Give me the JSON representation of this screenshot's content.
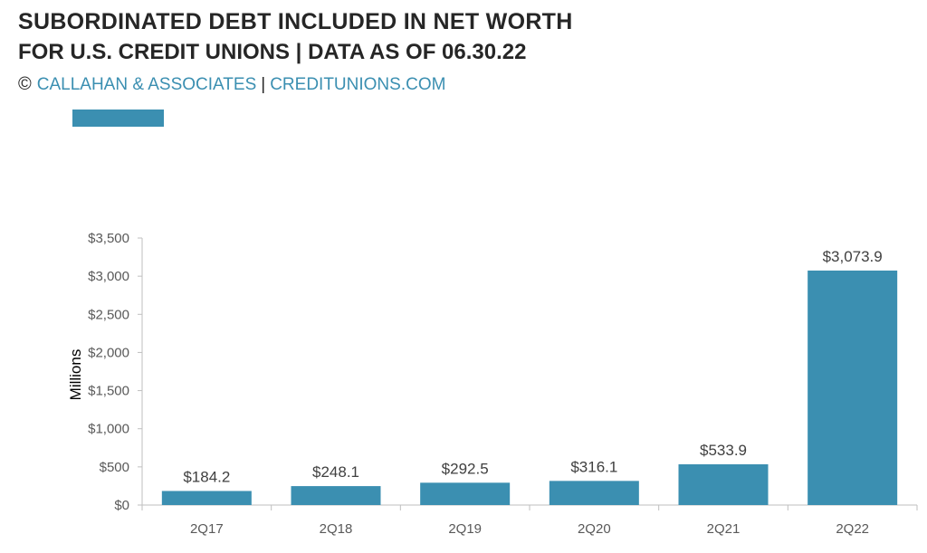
{
  "header": {
    "title": "SUBORDINATED DEBT INCLUDED IN NET WORTH",
    "subtitle": "FOR U.S. CREDIT UNIONS | DATA AS OF 06.30.22",
    "copyright_symbol": "©",
    "credit_org": "CALLAHAN & ASSOCIATES",
    "credit_sep": "|",
    "credit_site": "CREDITUNIONS.COM"
  },
  "colors": {
    "bar": "#3b8fb1",
    "axis": "#bfbfbf",
    "text": "#262626"
  },
  "chart_data": {
    "type": "bar",
    "title": "SUBORDINATED DEBT INCLUDED IN NET WORTH",
    "subtitle": "FOR U.S. CREDIT UNIONS | DATA AS OF 06.30.22",
    "xlabel": "",
    "ylabel": "Millions",
    "categories": [
      "2Q17",
      "2Q18",
      "2Q19",
      "2Q20",
      "2Q21",
      "2Q22"
    ],
    "values": [
      184.2,
      248.1,
      292.5,
      316.1,
      533.9,
      3073.9
    ],
    "data_labels": [
      "$184.2",
      "$248.1",
      "$292.5",
      "$316.1",
      "$533.9",
      "$3,073.9"
    ],
    "ylim": [
      0,
      3500
    ],
    "yticks": [
      0,
      500,
      1000,
      1500,
      2000,
      2500,
      3000,
      3500
    ],
    "ytick_labels": [
      "$0",
      "$500",
      "$1,000",
      "$1,500",
      "$2,000",
      "$2,500",
      "$3,000",
      "$3,500"
    ],
    "grid": false,
    "legend": "top-left"
  }
}
